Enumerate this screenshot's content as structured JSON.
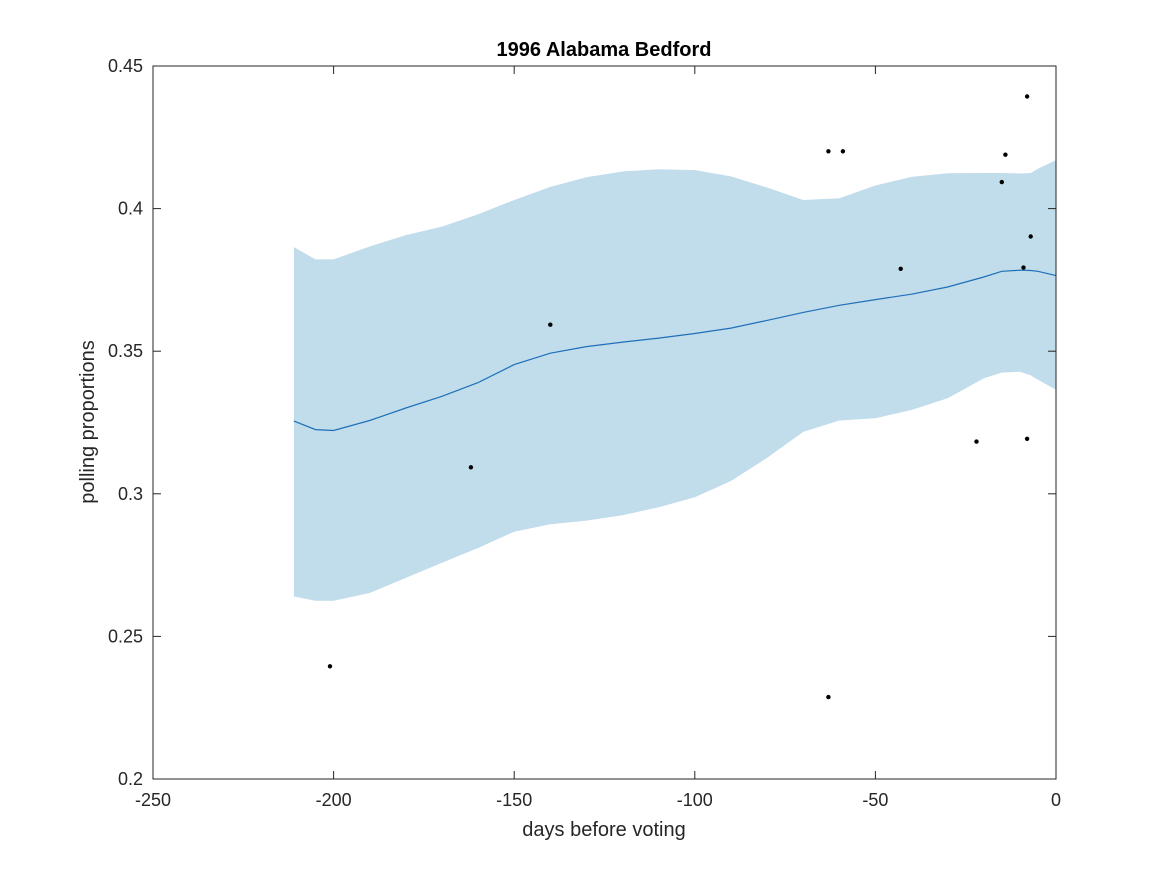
{
  "chart_data": {
    "type": "line",
    "title": "1996 Alabama Bedford",
    "xlabel": "days before voting",
    "ylabel": "polling proportions",
    "xlim": [
      -250,
      0
    ],
    "ylim": [
      0.2,
      0.45
    ],
    "xticks": [
      -250,
      -200,
      -150,
      -100,
      -50,
      0
    ],
    "xtick_labels": [
      "-250",
      "-200",
      "-150",
      "-100",
      "-50",
      "0"
    ],
    "yticks": [
      0.2,
      0.25,
      0.3,
      0.35,
      0.4,
      0.45
    ],
    "ytick_labels": [
      "0.2",
      "0.25",
      "0.3",
      "0.35",
      "0.4",
      "0.45"
    ],
    "grid": false,
    "colors": {
      "band": "#c1dceb",
      "line": "#1f6fb8",
      "points": "#000000",
      "axes": "#262626"
    },
    "series": [
      {
        "type": "line",
        "x": [
          -211,
          -205,
          -200,
          -190,
          -180,
          -170,
          -160,
          -150,
          -140,
          -130,
          -120,
          -110,
          -100,
          -90,
          -80,
          -70,
          -60,
          -50,
          -40,
          -30,
          -20,
          -15,
          -10,
          -7,
          -5,
          0
        ],
        "y": [
          0.3255,
          0.3225,
          0.3222,
          0.3257,
          0.3301,
          0.3342,
          0.339,
          0.3453,
          0.3493,
          0.3516,
          0.3532,
          0.3546,
          0.3562,
          0.3581,
          0.3608,
          0.3636,
          0.3661,
          0.3681,
          0.37,
          0.3725,
          0.376,
          0.378,
          0.3784,
          0.3783,
          0.378,
          0.3765
        ]
      },
      {
        "type": "area",
        "x": [
          -211,
          -205,
          -200,
          -190,
          -180,
          -170,
          -160,
          -150,
          -140,
          -130,
          -120,
          -110,
          -100,
          -90,
          -80,
          -70,
          -60,
          -50,
          -40,
          -30,
          -20,
          -15,
          -10,
          -7,
          -5,
          0
        ],
        "upper": [
          0.3865,
          0.3822,
          0.3822,
          0.3867,
          0.3907,
          0.3937,
          0.398,
          0.403,
          0.4076,
          0.411,
          0.413,
          0.4138,
          0.4135,
          0.4113,
          0.4074,
          0.403,
          0.4036,
          0.4081,
          0.4111,
          0.4124,
          0.4125,
          0.4125,
          0.4123,
          0.4125,
          0.414,
          0.417
        ],
        "lower": [
          0.264,
          0.2625,
          0.2625,
          0.2652,
          0.2705,
          0.2758,
          0.281,
          0.2867,
          0.2893,
          0.2906,
          0.2925,
          0.2953,
          0.2988,
          0.3045,
          0.3126,
          0.3217,
          0.3257,
          0.3265,
          0.3294,
          0.3335,
          0.3405,
          0.3425,
          0.3428,
          0.3415,
          0.34,
          0.3365
        ]
      },
      {
        "type": "scatter",
        "x": [
          -201,
          -162,
          -140,
          -63,
          -63,
          -59,
          -43,
          -22,
          -15,
          -14,
          -9,
          -8,
          -8,
          -7
        ],
        "y": [
          0.2395,
          0.3093,
          0.3593,
          0.2287,
          0.4201,
          0.4201,
          0.3789,
          0.3183,
          0.4093,
          0.4189,
          0.3793,
          0.3193,
          0.4393,
          0.3902
        ]
      }
    ]
  }
}
